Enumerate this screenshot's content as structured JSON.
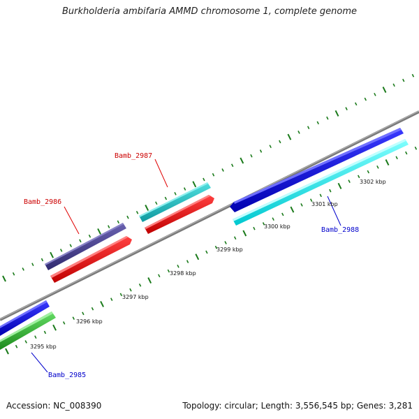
{
  "title": "Burkholderia ambifaria AMMD chromosome 1, complete genome",
  "footer": {
    "accession": "Accession: NC_008390",
    "summary": "Topology: circular; Length: 3,556,545 bp; Genes: 3,281"
  },
  "scale_labels": [
    "3295 kbp",
    "3296 kbp",
    "3297 kbp",
    "3298 kbp",
    "3299 kbp",
    "3300 kbp",
    "3301 kbp",
    "3302 kbp"
  ],
  "genes": [
    {
      "name": "Bamb_2985",
      "label_color": "#0000cc"
    },
    {
      "name": "Bamb_2986",
      "label_color": "#cc0000"
    },
    {
      "name": "Bamb_2987",
      "label_color": "#cc0000"
    },
    {
      "name": "Bamb_2988",
      "label_color": "#0000cc"
    }
  ],
  "colors": {
    "backbone": "#888888",
    "tick": "#1a7a1a",
    "leader_red": "#e00000",
    "leader_blue": "#0000cc",
    "blue": "#0000ee",
    "cyan": "#00eeee",
    "teal": "#22c0c8",
    "red": "#ff0000",
    "green": "#33bb33",
    "purple": "#4a4090"
  }
}
